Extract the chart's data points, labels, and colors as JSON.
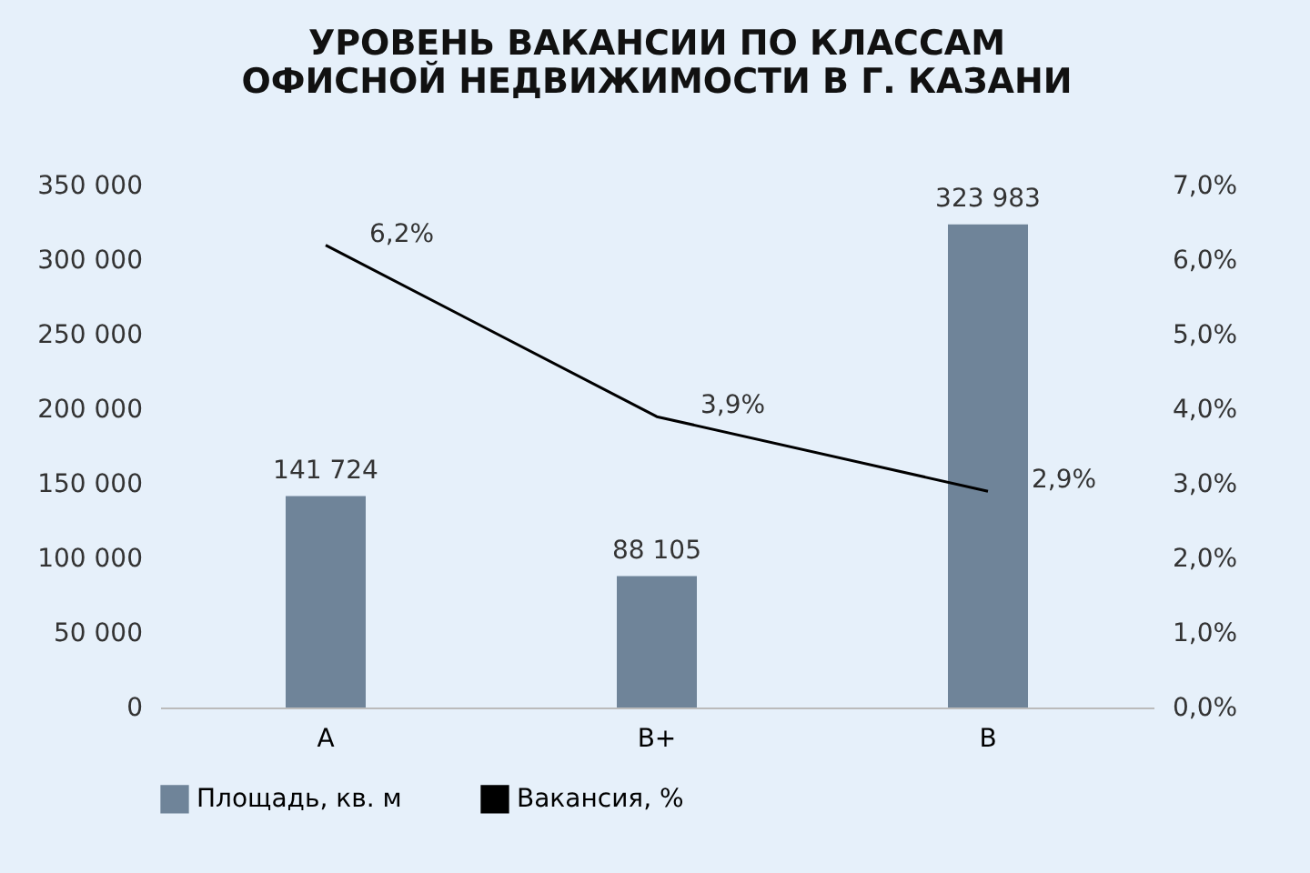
{
  "chart_data": {
    "type": "bar",
    "title": "УРОВЕНЬ ВАКАНСИИ ПО КЛАССАМ ОФИСНОЙ НЕДВИЖИМОСТИ В Г. КАЗАНИ",
    "categories": [
      "A",
      "B+",
      "B"
    ],
    "series": [
      {
        "name": "Площадь, кв. м",
        "color": "#6f8499",
        "values": [
          141724,
          88105,
          323983
        ],
        "value_labels": [
          "141 724",
          "88 105",
          "323 983"
        ]
      },
      {
        "name": "Вакансия, %",
        "type": "line",
        "axis": "y2",
        "color": "#000000",
        "values": [
          6.2,
          3.9,
          2.9
        ],
        "value_labels": [
          "6,2%",
          "3,9%",
          "2,9%"
        ]
      }
    ],
    "ylim": [
      0,
      350000
    ],
    "yticks": [
      0,
      {
        "value": 50000,
        "label": "50 000"
      },
      {
        "value": 100000,
        "label": "100 000"
      },
      {
        "value": 150000,
        "label": "150 000"
      },
      {
        "value": 200000,
        "label": "200 000"
      },
      {
        "value": 250000,
        "label": "250 000"
      },
      {
        "value": 300000,
        "label": "300 000"
      },
      {
        "value": 350000,
        "label": "350 000"
      }
    ],
    "y2lim": [
      0,
      7
    ],
    "y2ticks": [
      {
        "value": 0,
        "label": "0,0%"
      },
      {
        "value": 1,
        "label": "1,0%"
      },
      {
        "value": 2,
        "label": "2,0%"
      },
      {
        "value": 3,
        "label": "3,0%"
      },
      {
        "value": 4,
        "label": "4,0%"
      },
      {
        "value": 5,
        "label": "5,0%"
      },
      {
        "value": 6,
        "label": "6,0%"
      },
      {
        "value": 7,
        "label": "7,0%"
      }
    ],
    "grid": false,
    "legend": "bottom",
    "marker": "none",
    "line_style": "solid"
  }
}
